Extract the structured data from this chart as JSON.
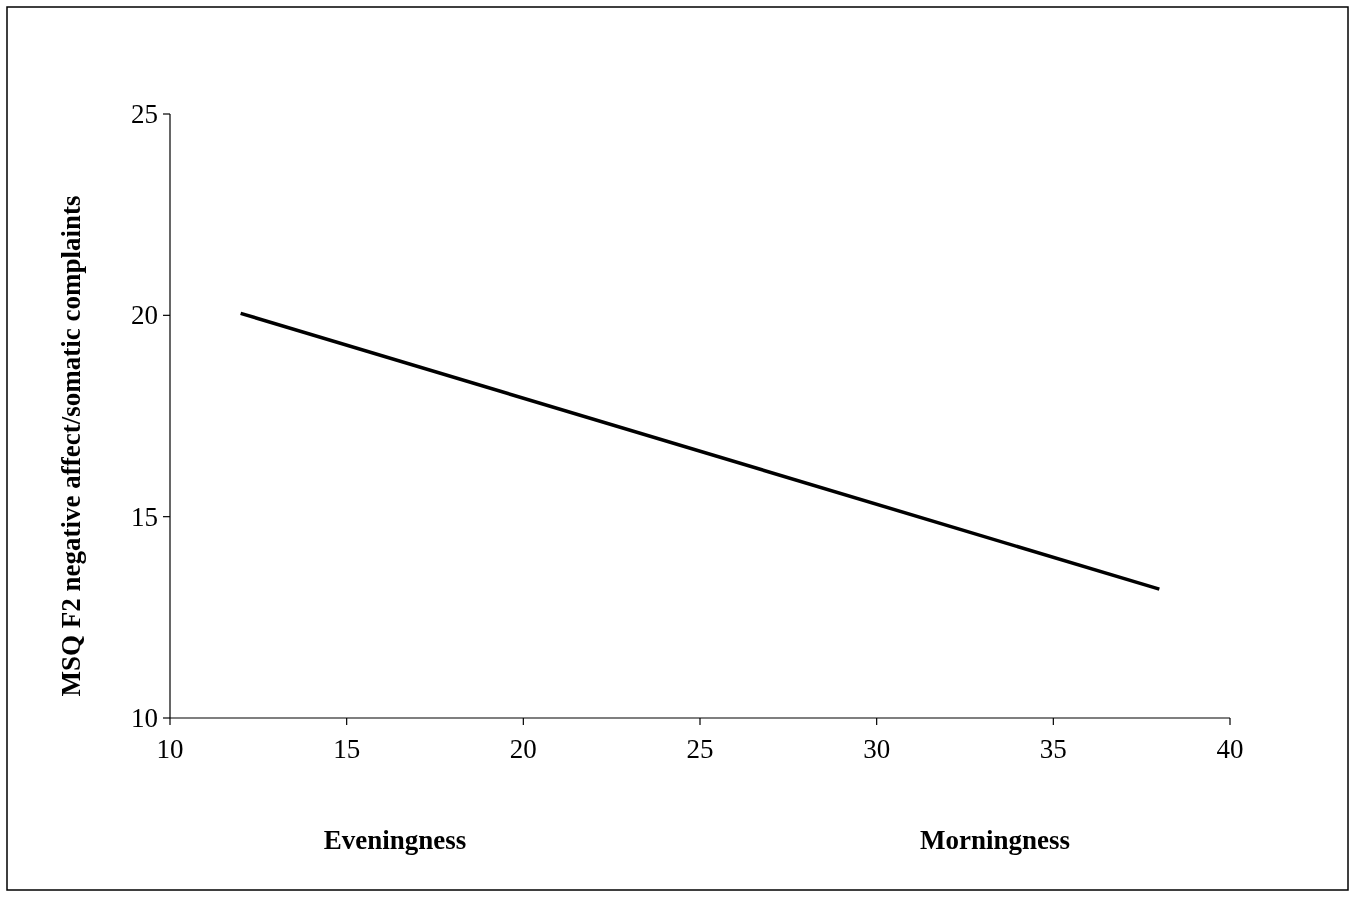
{
  "chart_data": {
    "type": "line",
    "ylabel": "MSQ F2 negative affect/somatic complaints",
    "x": [
      12,
      38
    ],
    "series": [
      {
        "color": "#000000",
        "values": [
          20.05,
          13.2
        ]
      }
    ],
    "xlim": [
      10,
      40
    ],
    "xticks": [
      10,
      15,
      20,
      25,
      30,
      35,
      40
    ],
    "ylim": [
      10,
      25
    ],
    "yticks": [
      10,
      15,
      20,
      25
    ],
    "annotations": [
      "Eveningness",
      "Morningness"
    ],
    "grid": false,
    "line_style": "solid"
  }
}
